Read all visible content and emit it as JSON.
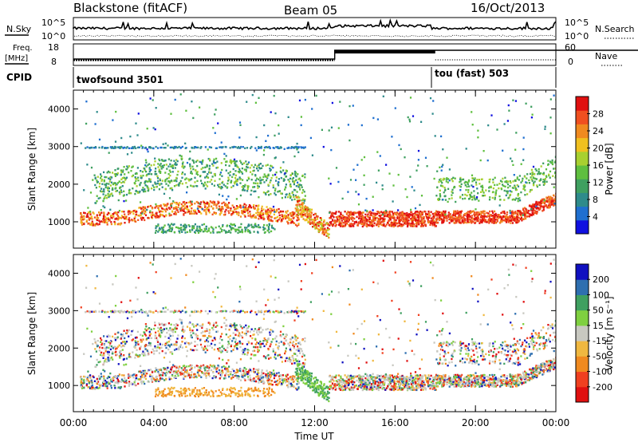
{
  "header": {
    "station": "Blackstone (fitACF)",
    "beam": "Beam 05",
    "date": "16/Oct/2013"
  },
  "noise_panel": {
    "left_label": "N.Sky",
    "left_ticks": [
      "10^5",
      "10^0"
    ],
    "right_label": "N.Search",
    "right_ticks": [
      "10^5",
      "10^0"
    ]
  },
  "freq_panel": {
    "left_label": "Freq.",
    "left_unit": "[MHz]",
    "left_ticks": [
      "18",
      "8"
    ],
    "right_label": "Nave",
    "right_ticks": [
      "60",
      "0"
    ]
  },
  "cpid_panel": {
    "label": "CPID",
    "segments": [
      {
        "name": "twofsound 3501",
        "start_hour": 0,
        "end_hour": 18
      },
      {
        "name": "tou (fast) 503",
        "start_hour": 18,
        "end_hour": 24
      }
    ]
  },
  "chart_data": [
    {
      "type": "heatmap",
      "panel": "power",
      "ylabel": "Slant Range [km]",
      "xlim": [
        0,
        24
      ],
      "ylim": [
        300,
        4500
      ],
      "yticks": [
        "1000",
        "2000",
        "3000",
        "4000"
      ],
      "colorbar": {
        "label": "Power [dB]",
        "ticks": [
          "4",
          "8",
          "12",
          "16",
          "20",
          "24",
          "28"
        ],
        "range": [
          0,
          32
        ]
      }
    },
    {
      "type": "heatmap",
      "panel": "velocity",
      "ylabel": "Slant Range [km]",
      "xlabel": "Time UT",
      "xlim": [
        0,
        24
      ],
      "ylim": [
        300,
        4500
      ],
      "xticks": [
        "00:00",
        "04:00",
        "08:00",
        "12:00",
        "16:00",
        "20:00",
        "00:00"
      ],
      "yticks": [
        "1000",
        "2000",
        "3000",
        "4000"
      ],
      "colorbar": {
        "label": "Velocity [m s⁻¹]",
        "ticks": [
          "200",
          "100",
          "50",
          "15",
          "-15",
          "-50",
          "-100",
          "-200"
        ]
      }
    }
  ]
}
